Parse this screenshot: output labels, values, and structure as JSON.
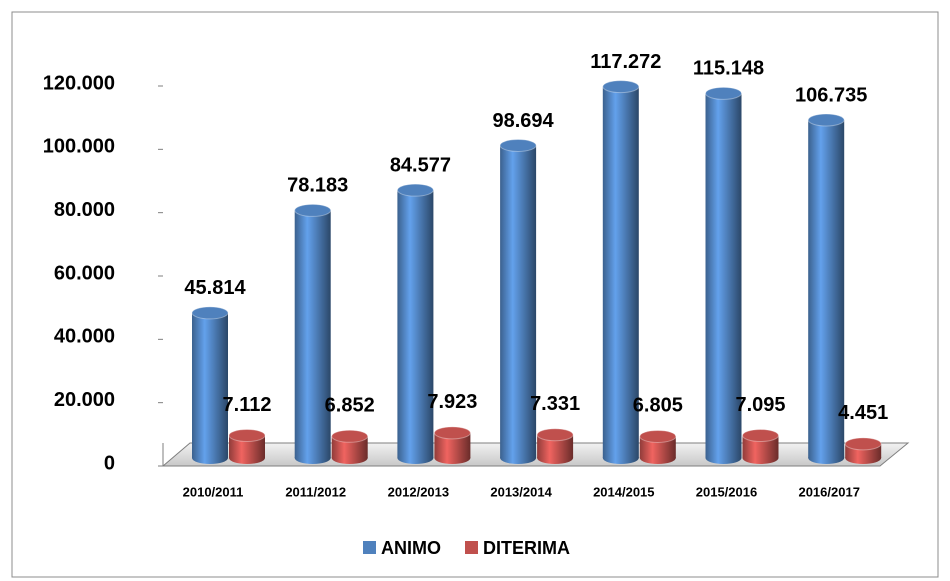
{
  "chart_data": {
    "type": "bar3d",
    "categories": [
      "2010/2011",
      "2011/2012",
      "2012/2013",
      "2013/2014",
      "2014/2015",
      "2015/2016",
      "2016/2017"
    ],
    "series": [
      {
        "name": "ANIMO",
        "color": "#4f81bd",
        "values": [
          45814,
          78183,
          84577,
          98694,
          117272,
          115148,
          106735
        ],
        "value_labels": [
          "45.814",
          "78.183",
          "84.577",
          "98.694",
          "117.272",
          "115.148",
          "106.735"
        ]
      },
      {
        "name": "DITERIMA",
        "color": "#c0504d",
        "values": [
          7112,
          6852,
          7923,
          7331,
          6805,
          7095,
          4451
        ],
        "value_labels": [
          "7.112",
          "6.852",
          "7.923",
          "7.331",
          "6.805",
          "7.095",
          "4.451"
        ]
      }
    ],
    "ylim": [
      0,
      120000
    ],
    "yticks": [
      0,
      {
        "value": 20000,
        "label": "20.000"
      },
      {
        "value": 40000,
        "label": "40.000"
      },
      {
        "value": 60000,
        "label": "60.000"
      },
      {
        "value": 80000,
        "label": "80.000"
      },
      {
        "value": 100000,
        "label": "100.000"
      },
      {
        "value": 120000,
        "label": "120.000"
      }
    ],
    "legend": "bottom",
    "grid": false
  }
}
